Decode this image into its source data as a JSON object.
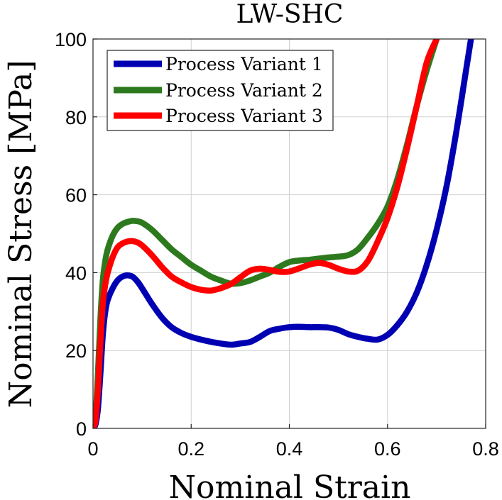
{
  "chart_data": {
    "type": "line",
    "title": "LW-SHC",
    "xlabel": "Nominal Strain",
    "ylabel": "Nominal Stress [MPa]",
    "xlim": [
      0,
      0.8
    ],
    "ylim": [
      0,
      100
    ],
    "xticks": [
      0,
      0.2,
      0.4,
      0.6,
      0.8
    ],
    "xtick_labels": [
      "0",
      "0.2",
      "0.4",
      "0.6",
      "0.8"
    ],
    "yticks": [
      0,
      20,
      40,
      60,
      80,
      100
    ],
    "ytick_labels": [
      "0",
      "20",
      "40",
      "60",
      "80",
      "100"
    ],
    "grid": true,
    "legend_position": "top-left",
    "series": [
      {
        "name": "Process Variant 1",
        "color": "#0000b3",
        "x": [
          0,
          0.005,
          0.01,
          0.015,
          0.02,
          0.025,
          0.03,
          0.04,
          0.05,
          0.06,
          0.07,
          0.08,
          0.09,
          0.1,
          0.12,
          0.14,
          0.16,
          0.18,
          0.2,
          0.22,
          0.25,
          0.28,
          0.3,
          0.32,
          0.34,
          0.36,
          0.38,
          0.4,
          0.42,
          0.44,
          0.46,
          0.48,
          0.5,
          0.52,
          0.54,
          0.56,
          0.58,
          0.6,
          0.62,
          0.64,
          0.66,
          0.68,
          0.7,
          0.72,
          0.74,
          0.76,
          0.77
        ],
        "y": [
          0,
          1,
          5,
          14,
          24,
          30,
          33,
          36,
          38,
          39,
          39.3,
          39,
          37.8,
          36,
          32,
          28.5,
          26,
          24.5,
          23.5,
          22.8,
          22,
          21.5,
          21.8,
          22.2,
          23.5,
          25,
          25.6,
          26,
          26.1,
          26,
          26,
          25.9,
          25.3,
          24.2,
          23.5,
          23,
          22.8,
          24,
          26.5,
          30,
          35,
          42,
          51,
          62,
          76,
          92,
          100
        ]
      },
      {
        "name": "Process Variant 2",
        "color": "#2d7a1e",
        "x": [
          0,
          0.005,
          0.01,
          0.015,
          0.02,
          0.025,
          0.03,
          0.04,
          0.05,
          0.06,
          0.07,
          0.08,
          0.09,
          0.1,
          0.12,
          0.14,
          0.16,
          0.18,
          0.2,
          0.22,
          0.24,
          0.26,
          0.28,
          0.3,
          0.32,
          0.34,
          0.36,
          0.38,
          0.4,
          0.42,
          0.44,
          0.46,
          0.48,
          0.5,
          0.52,
          0.54,
          0.56,
          0.58,
          0.6,
          0.62,
          0.64,
          0.66,
          0.68,
          0.7
        ],
        "y": [
          0,
          3,
          14,
          28,
          38,
          43,
          46,
          49.5,
          51.5,
          52.5,
          53,
          53.3,
          53.2,
          52.8,
          51,
          48.5,
          46,
          44,
          42,
          40.5,
          39,
          38,
          37.2,
          37.3,
          38,
          39,
          40,
          41.5,
          42.7,
          43.1,
          43.3,
          43.6,
          43.9,
          44.1,
          44.5,
          46,
          49,
          52.5,
          57,
          64,
          73,
          83,
          92,
          100
        ]
      },
      {
        "name": "Process Variant 3",
        "color": "#ff0000",
        "x": [
          0,
          0.005,
          0.01,
          0.015,
          0.02,
          0.025,
          0.03,
          0.04,
          0.05,
          0.06,
          0.07,
          0.08,
          0.09,
          0.1,
          0.12,
          0.14,
          0.16,
          0.18,
          0.2,
          0.22,
          0.24,
          0.26,
          0.28,
          0.3,
          0.32,
          0.34,
          0.36,
          0.38,
          0.4,
          0.42,
          0.44,
          0.46,
          0.48,
          0.5,
          0.52,
          0.54,
          0.56,
          0.58,
          0.6,
          0.62,
          0.64,
          0.66,
          0.68,
          0.7
        ],
        "y": [
          0,
          2,
          10,
          22,
          32,
          37,
          40,
          44,
          46.5,
          47.5,
          48,
          48.1,
          47.8,
          47,
          44.5,
          41.5,
          39,
          37.5,
          36.3,
          35.6,
          35.4,
          36,
          37,
          38.8,
          40.5,
          41,
          40.7,
          40.2,
          40.3,
          41.1,
          42,
          42.5,
          42,
          41,
          40.3,
          40.5,
          43,
          48,
          54,
          62,
          72,
          83,
          94,
          100
        ]
      }
    ]
  }
}
